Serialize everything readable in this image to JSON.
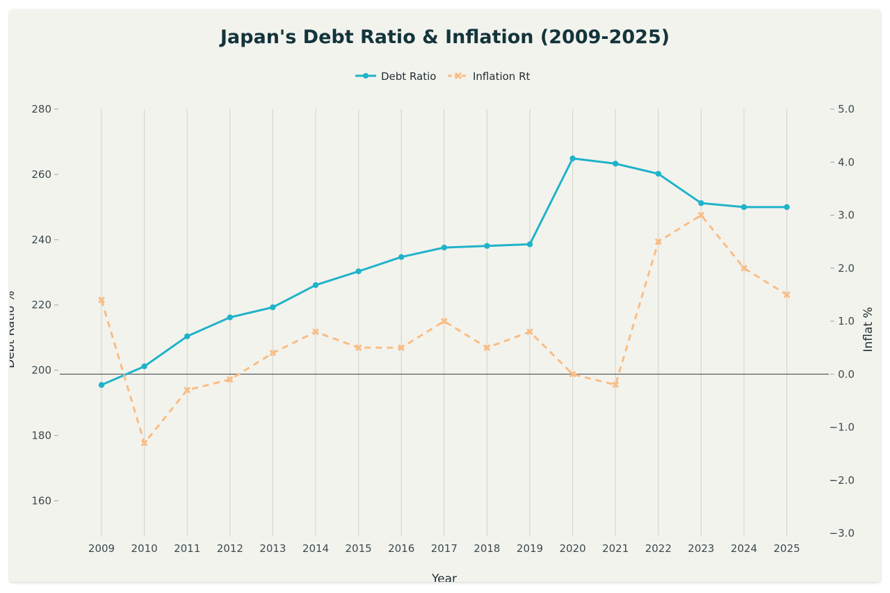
{
  "chart_data": {
    "type": "line",
    "title": "Japan's Debt Ratio & Inflation (2009-2025)",
    "xlabel": "Year",
    "ylabel": "Debt Ratio %",
    "y2label": "Inflat %",
    "ylim": [
      150,
      280
    ],
    "y2lim": [
      -3.0,
      5.0
    ],
    "yticks": [
      160,
      180,
      200,
      220,
      240,
      260,
      280
    ],
    "y2ticks": [
      -3.0,
      -2.0,
      -1.0,
      0.0,
      1.0,
      2.0,
      3.0,
      4.0,
      5.0
    ],
    "x": [
      "2009",
      "2010",
      "2011",
      "2012",
      "2013",
      "2014",
      "2015",
      "2016",
      "2017",
      "2018",
      "2019",
      "2020",
      "2021",
      "2022",
      "2023",
      "2024",
      "2025"
    ],
    "series": [
      {
        "name": "Debt Ratio",
        "axis": "left",
        "color": "#1fb3c9",
        "style": "solid-circle",
        "values": [
          195.5,
          201.2,
          210.4,
          216.2,
          219.3,
          226.1,
          230.3,
          234.7,
          237.6,
          238.1,
          238.6,
          264.9,
          263.3,
          260.2,
          251.2,
          250.0,
          250.0
        ]
      },
      {
        "name": "Inflation Rt",
        "axis": "right",
        "color": "#f9bd84",
        "style": "dashed-x",
        "values": [
          1.4,
          -1.3,
          -0.3,
          -0.1,
          0.4,
          0.8,
          0.5,
          0.5,
          1.0,
          0.5,
          0.8,
          0.0,
          -0.2,
          2.5,
          3.0,
          2.0,
          1.5
        ]
      }
    ],
    "grid": "vertical",
    "legend": "top-center"
  }
}
